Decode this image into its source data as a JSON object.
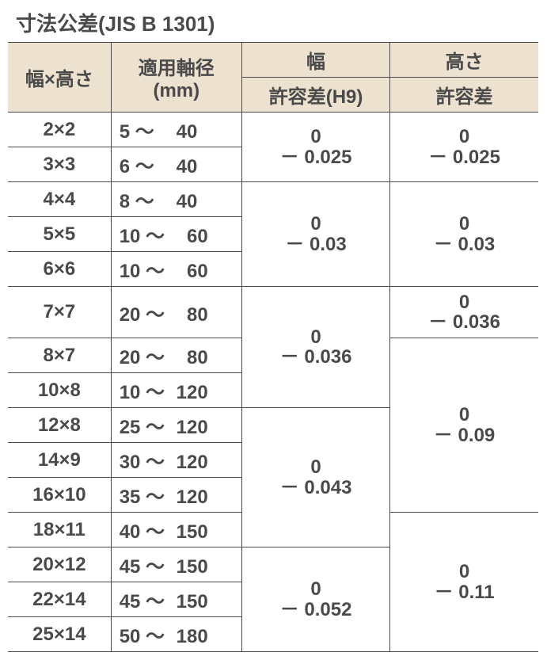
{
  "title": "寸法公差(JIS B 1301)",
  "headers": {
    "wh": "幅×高さ",
    "dia": "適用軸径\n(mm)",
    "w": "幅",
    "w_sub": "許容差(H9)",
    "h": "高さ",
    "h_sub": "許容差"
  },
  "rows": [
    {
      "wh": "2×2",
      "dia_lo": "5",
      "dia_hi": "40"
    },
    {
      "wh": "3×3",
      "dia_lo": "6",
      "dia_hi": "40"
    },
    {
      "wh": "4×4",
      "dia_lo": "8",
      "dia_hi": "40"
    },
    {
      "wh": "5×5",
      "dia_lo": "10",
      "dia_hi": "60"
    },
    {
      "wh": "6×6",
      "dia_lo": "10",
      "dia_hi": "60"
    },
    {
      "wh": "7×7",
      "dia_lo": "20",
      "dia_hi": "80"
    },
    {
      "wh": "8×7",
      "dia_lo": "20",
      "dia_hi": "80"
    },
    {
      "wh": "10×8",
      "dia_lo": "10",
      "dia_hi": "120"
    },
    {
      "wh": "12×8",
      "dia_lo": "25",
      "dia_hi": "120"
    },
    {
      "wh": "14×9",
      "dia_lo": "30",
      "dia_hi": "120"
    },
    {
      "wh": "16×10",
      "dia_lo": "35",
      "dia_hi": "120"
    },
    {
      "wh": "18×11",
      "dia_lo": "40",
      "dia_hi": "150"
    },
    {
      "wh": "20×12",
      "dia_lo": "45",
      "dia_hi": "150"
    },
    {
      "wh": "22×14",
      "dia_lo": "45",
      "dia_hi": "150"
    },
    {
      "wh": "25×14",
      "dia_lo": "50",
      "dia_hi": "180"
    }
  ],
  "width_tol": [
    {
      "span": 2,
      "val": "0\n－ 0.025"
    },
    {
      "span": 3,
      "val": "0\n－ 0.03"
    },
    {
      "span": 3,
      "val": "0\n－ 0.036"
    },
    {
      "span": 4,
      "val": "0\n－ 0.043"
    },
    {
      "span": 3,
      "val": "0\n－ 0.052"
    }
  ],
  "height_tol": [
    {
      "span": 2,
      "val": "0\n－ 0.025"
    },
    {
      "span": 3,
      "val": "0\n－ 0.03"
    },
    {
      "span": 1,
      "val": "0\n－ 0.036"
    },
    {
      "span": 5,
      "val": "0\n－ 0.09"
    },
    {
      "span": 4,
      "val": "0\n－ 0.11"
    }
  ],
  "colors": {
    "header_bg": "#ede2d0",
    "border": "#4a4a4a",
    "text": "#4a4a4a",
    "bg": "#ffffff"
  }
}
